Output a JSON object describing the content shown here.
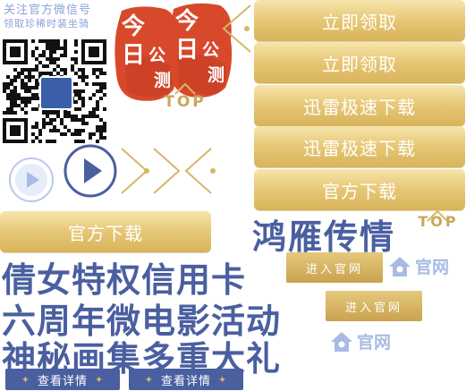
{
  "qr": {
    "title": "关注官方微信号",
    "subtitle": "领取珍稀时装坐骑"
  },
  "seals": [
    {
      "big1": "今",
      "big2": "日",
      "small1": "公",
      "small2": "测"
    },
    {
      "big1": "今",
      "big2": "日",
      "small1": "公",
      "small2": "测"
    }
  ],
  "top_label": "TOP",
  "buttons": {
    "claim_1": "立即领取",
    "claim_2": "立即领取",
    "xunlei_1": "迅雷极速下载",
    "xunlei_2": "迅雷极速下载",
    "official_1": "官方下载",
    "official_2": "官方下载"
  },
  "headlines": {
    "h1": "鸿雁传情",
    "h2": "倩女特权信用卡",
    "h3": "六周年微电影活动",
    "h4": "神秘画集多重大礼"
  },
  "enter_site_label": "进入官网",
  "official_site_label": "官网",
  "detail_label": "查看详情",
  "colors": {
    "gold": "#e0bf6e",
    "navy": "#4a5fa0",
    "seal_red": "#d8492c",
    "light_blue": "#a9bbe4"
  }
}
